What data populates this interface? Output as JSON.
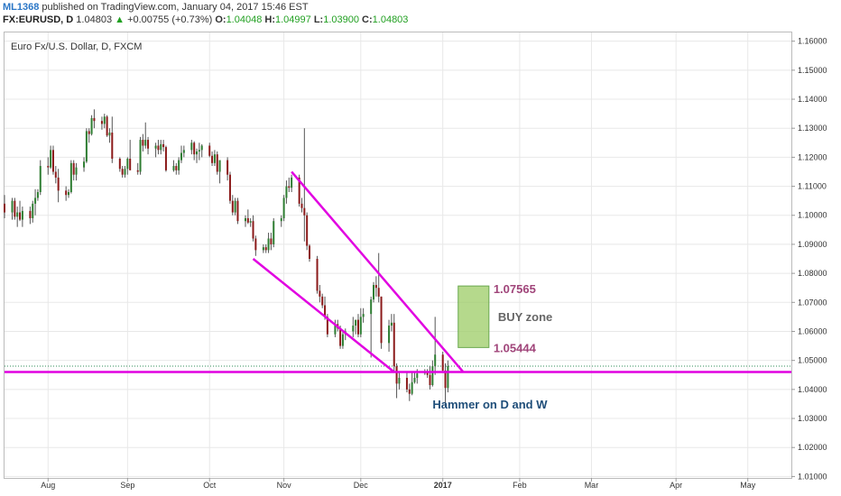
{
  "header": {
    "author": "ML1368",
    "published_text": "published on TradingView.com, January 04, 2017 15:46 EST",
    "symbol": "FX:EURUSD, D",
    "last": "1.04803",
    "arrow": "▲",
    "change": "+0.00755 (+0.73%)",
    "o_label": "O:",
    "o_value": "1.04048",
    "h_label": "H:",
    "h_value": "1.04997",
    "l_label": "L:",
    "l_value": "1.03900",
    "c_label": "C:",
    "c_value": "1.04803"
  },
  "colors": {
    "up": "#2e7d32",
    "down": "#8b1a1a",
    "trendline": "#e100e1",
    "support": "#e100e1",
    "buy_zone_fill": "#9ccc65",
    "buy_zone_stroke": "#6aa84f",
    "price_line": "#2e8b57",
    "grid": "#e8e8e8"
  },
  "chart_data": {
    "type": "candlestick",
    "title": "Euro Fx/U.S. Dollar, D, FXCM",
    "y_range": [
      1.0095,
      1.163
    ],
    "y_ticks": [
      "1.16000",
      "1.15000",
      "1.14000",
      "1.13000",
      "1.12000",
      "1.11000",
      "1.10000",
      "1.09000",
      "1.08000",
      "1.07000",
      "1.06000",
      "1.05000",
      "1.04000",
      "1.03000",
      "1.02000",
      "1.01000"
    ],
    "x_ticks": [
      {
        "label": "Aug",
        "date": "2016-08-01",
        "bold": false
      },
      {
        "label": "Sep",
        "date": "2016-09-01",
        "bold": false
      },
      {
        "label": "Oct",
        "date": "2016-10-03",
        "bold": false
      },
      {
        "label": "Nov",
        "date": "2016-11-01",
        "bold": false
      },
      {
        "label": "Dec",
        "date": "2016-12-01",
        "bold": false
      },
      {
        "label": "2017",
        "date": "2017-01-02",
        "bold": true
      },
      {
        "label": "Feb",
        "date": "2017-02-01",
        "bold": false
      },
      {
        "label": "Mar",
        "date": "2017-03-01",
        "bold": false
      },
      {
        "label": "Apr",
        "date": "2017-04-03",
        "bold": false
      },
      {
        "label": "May",
        "date": "2017-05-01",
        "bold": false
      }
    ],
    "x_range": [
      "2016-07-15",
      "2017-05-18"
    ],
    "close_line": 1.04803,
    "candles": [
      [
        "2016-07-15",
        1.104,
        1.107,
        1.099,
        1.101
      ],
      [
        "2016-07-18",
        1.101,
        1.106,
        1.0985,
        1.105
      ],
      [
        "2016-07-19",
        1.105,
        1.106,
        1.0985,
        1.0995
      ],
      [
        "2016-07-20",
        1.0995,
        1.103,
        1.096,
        1.101
      ],
      [
        "2016-07-21",
        1.101,
        1.105,
        1.098,
        1.0985
      ],
      [
        "2016-07-22",
        1.0985,
        1.103,
        1.096,
        1.1015
      ],
      [
        "2016-07-25",
        1.1015,
        1.103,
        1.097,
        1.099
      ],
      [
        "2016-07-26",
        1.099,
        1.105,
        1.0975,
        1.104
      ],
      [
        "2016-07-27",
        1.104,
        1.109,
        1.1,
        1.106
      ],
      [
        "2016-07-28",
        1.106,
        1.109,
        1.105,
        1.108
      ],
      [
        "2016-07-29",
        1.108,
        1.119,
        1.107,
        1.117
      ],
      [
        "2016-08-01",
        1.117,
        1.12,
        1.114,
        1.1165
      ],
      [
        "2016-08-02",
        1.1165,
        1.124,
        1.116,
        1.1225
      ],
      [
        "2016-08-03",
        1.1225,
        1.124,
        1.114,
        1.115
      ],
      [
        "2016-08-04",
        1.115,
        1.117,
        1.111,
        1.113
      ],
      [
        "2016-08-05",
        1.113,
        1.116,
        1.1045,
        1.1085
      ],
      [
        "2016-08-08",
        1.1085,
        1.11,
        1.105,
        1.107
      ],
      [
        "2016-08-09",
        1.107,
        1.109,
        1.106,
        1.108
      ],
      [
        "2016-08-10",
        1.108,
        1.119,
        1.1075,
        1.118
      ],
      [
        "2016-08-11",
        1.118,
        1.119,
        1.112,
        1.114
      ],
      [
        "2016-08-12",
        1.114,
        1.118,
        1.112,
        1.1165
      ],
      [
        "2016-08-15",
        1.1165,
        1.12,
        1.115,
        1.1185
      ],
      [
        "2016-08-16",
        1.1185,
        1.13,
        1.118,
        1.129
      ],
      [
        "2016-08-17",
        1.129,
        1.13,
        1.125,
        1.128
      ],
      [
        "2016-08-18",
        1.128,
        1.1345,
        1.1275,
        1.1335
      ],
      [
        "2016-08-19",
        1.1335,
        1.1365,
        1.13,
        1.1325
      ],
      [
        "2016-08-22",
        1.1325,
        1.134,
        1.1295,
        1.1315
      ],
      [
        "2016-08-23",
        1.1315,
        1.135,
        1.13,
        1.134
      ],
      [
        "2016-08-24",
        1.134,
        1.1345,
        1.127,
        1.1275
      ],
      [
        "2016-08-25",
        1.1275,
        1.13,
        1.125,
        1.1285
      ],
      [
        "2016-08-26",
        1.1285,
        1.134,
        1.118,
        1.1195
      ],
      [
        "2016-08-29",
        1.1195,
        1.12,
        1.115,
        1.116
      ],
      [
        "2016-08-30",
        1.116,
        1.117,
        1.113,
        1.114
      ],
      [
        "2016-08-31",
        1.114,
        1.117,
        1.113,
        1.116
      ],
      [
        "2016-09-01",
        1.116,
        1.12,
        1.114,
        1.1195
      ],
      [
        "2016-09-02",
        1.1195,
        1.126,
        1.116,
        1.1155
      ],
      [
        "2016-09-05",
        1.1155,
        1.118,
        1.114,
        1.115
      ],
      [
        "2016-09-06",
        1.115,
        1.127,
        1.114,
        1.126
      ],
      [
        "2016-09-07",
        1.126,
        1.128,
        1.122,
        1.124
      ],
      [
        "2016-09-08",
        1.124,
        1.132,
        1.123,
        1.126
      ],
      [
        "2016-09-09",
        1.126,
        1.127,
        1.121,
        1.123
      ],
      [
        "2016-09-12",
        1.123,
        1.125,
        1.12,
        1.124
      ],
      [
        "2016-09-13",
        1.124,
        1.126,
        1.121,
        1.1225
      ],
      [
        "2016-09-14",
        1.1225,
        1.126,
        1.121,
        1.1245
      ],
      [
        "2016-09-15",
        1.1245,
        1.126,
        1.122,
        1.1235
      ],
      [
        "2016-09-16",
        1.1235,
        1.124,
        1.115,
        1.1155
      ],
      [
        "2016-09-19",
        1.1155,
        1.119,
        1.115,
        1.117
      ],
      [
        "2016-09-20",
        1.117,
        1.118,
        1.114,
        1.1155
      ],
      [
        "2016-09-21",
        1.1155,
        1.12,
        1.114,
        1.119
      ],
      [
        "2016-09-22",
        1.119,
        1.124,
        1.118,
        1.1215
      ],
      [
        "2016-09-23",
        1.1215,
        1.124,
        1.12,
        1.1225
      ],
      [
        "2016-09-26",
        1.1225,
        1.126,
        1.121,
        1.125
      ],
      [
        "2016-09-27",
        1.125,
        1.1255,
        1.119,
        1.121
      ],
      [
        "2016-09-28",
        1.121,
        1.123,
        1.118,
        1.122
      ],
      [
        "2016-09-29",
        1.122,
        1.125,
        1.119,
        1.1225
      ],
      [
        "2016-09-30",
        1.1225,
        1.1245,
        1.12,
        1.124
      ],
      [
        "2016-10-03",
        1.124,
        1.125,
        1.12,
        1.1205
      ],
      [
        "2016-10-04",
        1.1205,
        1.122,
        1.117,
        1.118
      ],
      [
        "2016-10-05",
        1.118,
        1.1225,
        1.117,
        1.121
      ],
      [
        "2016-10-06",
        1.121,
        1.122,
        1.114,
        1.115
      ],
      [
        "2016-10-07",
        1.115,
        1.119,
        1.111,
        1.119
      ],
      [
        "2016-10-10",
        1.119,
        1.12,
        1.112,
        1.114
      ],
      [
        "2016-10-11",
        1.114,
        1.115,
        1.104,
        1.105
      ],
      [
        "2016-10-12",
        1.105,
        1.107,
        1.1,
        1.101
      ],
      [
        "2016-10-13",
        1.101,
        1.106,
        1.1,
        1.105
      ],
      [
        "2016-10-14",
        1.105,
        1.106,
        1.097,
        1.098
      ],
      [
        "2016-10-17",
        1.098,
        1.1,
        1.096,
        1.099
      ],
      [
        "2016-10-18",
        1.099,
        1.102,
        1.097,
        1.0975
      ],
      [
        "2016-10-19",
        1.0975,
        1.099,
        1.096,
        1.098
      ],
      [
        "2016-10-20",
        1.098,
        1.1,
        1.091,
        1.092
      ],
      [
        "2016-10-21",
        1.092,
        1.093,
        1.086,
        1.088
      ],
      [
        "2016-10-24",
        1.088,
        1.09,
        1.087,
        1.089
      ],
      [
        "2016-10-25",
        1.089,
        1.09,
        1.087,
        1.088
      ],
      [
        "2016-10-26",
        1.088,
        1.094,
        1.087,
        1.092
      ],
      [
        "2016-10-27",
        1.092,
        1.094,
        1.088,
        1.09
      ],
      [
        "2016-10-28",
        1.09,
        1.099,
        1.089,
        1.098
      ],
      [
        "2016-10-31",
        1.098,
        1.1,
        1.096,
        1.099
      ],
      [
        "2016-11-01",
        1.099,
        1.107,
        1.098,
        1.106
      ],
      [
        "2016-11-02",
        1.106,
        1.112,
        1.104,
        1.11
      ],
      [
        "2016-11-03",
        1.11,
        1.113,
        1.108,
        1.1095
      ],
      [
        "2016-11-04",
        1.1095,
        1.114,
        1.108,
        1.113
      ],
      [
        "2016-11-07",
        1.113,
        1.114,
        1.103,
        1.104
      ],
      [
        "2016-11-08",
        1.104,
        1.106,
        1.101,
        1.1025
      ],
      [
        "2016-11-09",
        1.1025,
        1.13,
        1.091,
        1.1
      ],
      [
        "2016-11-10",
        1.1,
        1.101,
        1.088,
        1.0895
      ],
      [
        "2016-11-11",
        1.0895,
        1.09,
        1.084,
        1.085
      ],
      [
        "2016-11-14",
        1.085,
        1.086,
        1.073,
        1.074
      ],
      [
        "2016-11-15",
        1.074,
        1.076,
        1.07,
        1.072
      ],
      [
        "2016-11-16",
        1.072,
        1.073,
        1.068,
        1.069
      ],
      [
        "2016-11-17",
        1.069,
        1.072,
        1.064,
        1.065
      ],
      [
        "2016-11-18",
        1.065,
        1.066,
        1.058,
        1.059
      ],
      [
        "2016-11-21",
        1.059,
        1.064,
        1.058,
        1.0625
      ],
      [
        "2016-11-22",
        1.0625,
        1.064,
        1.06,
        1.061
      ],
      [
        "2016-11-23",
        1.061,
        1.062,
        1.054,
        1.055
      ],
      [
        "2016-11-24",
        1.055,
        1.06,
        1.054,
        1.059
      ],
      [
        "2016-11-25",
        1.059,
        1.061,
        1.057,
        1.06
      ],
      [
        "2016-11-28",
        1.06,
        1.065,
        1.058,
        1.062
      ],
      [
        "2016-11-29",
        1.062,
        1.064,
        1.059,
        1.064
      ],
      [
        "2016-11-30",
        1.064,
        1.066,
        1.058,
        1.059
      ],
      [
        "2016-12-01",
        1.059,
        1.068,
        1.058,
        1.065
      ],
      [
        "2016-12-02",
        1.065,
        1.068,
        1.063,
        1.066
      ],
      [
        "2016-12-05",
        1.066,
        1.072,
        1.051,
        1.071
      ],
      [
        "2016-12-06",
        1.071,
        1.077,
        1.07,
        1.076
      ],
      [
        "2016-12-07",
        1.076,
        1.079,
        1.072,
        1.075
      ],
      [
        "2016-12-08",
        1.075,
        1.087,
        1.07,
        1.072
      ],
      [
        "2016-12-09",
        1.072,
        1.072,
        1.054,
        1.056
      ],
      [
        "2016-12-12",
        1.056,
        1.064,
        1.053,
        1.062
      ],
      [
        "2016-12-13",
        1.062,
        1.066,
        1.06,
        1.063
      ],
      [
        "2016-12-14",
        1.063,
        1.066,
        1.046,
        1.048
      ],
      [
        "2016-12-15",
        1.048,
        1.049,
        1.037,
        1.042
      ],
      [
        "2016-12-16",
        1.042,
        1.046,
        1.04,
        1.044
      ],
      [
        "2016-12-19",
        1.044,
        1.046,
        1.039,
        1.04
      ],
      [
        "2016-12-20",
        1.04,
        1.042,
        1.036,
        1.0385
      ],
      [
        "2016-12-21",
        1.0385,
        1.046,
        1.038,
        1.0425
      ],
      [
        "2016-12-22",
        1.0425,
        1.046,
        1.042,
        1.044
      ],
      [
        "2016-12-23",
        1.044,
        1.047,
        1.042,
        1.0455
      ],
      [
        "2016-12-26",
        1.0455,
        1.047,
        1.045,
        1.046
      ],
      [
        "2016-12-27",
        1.046,
        1.047,
        1.044,
        1.045
      ],
      [
        "2016-12-28",
        1.045,
        1.048,
        1.04,
        1.0415
      ],
      [
        "2016-12-29",
        1.0415,
        1.05,
        1.041,
        1.048
      ],
      [
        "2016-12-30",
        1.048,
        1.065,
        1.045,
        1.052
      ],
      [
        "2017-01-02",
        1.052,
        1.053,
        1.046,
        1.0465
      ],
      [
        "2017-01-03",
        1.0465,
        1.049,
        1.034,
        1.0405
      ],
      [
        "2017-01-04",
        1.04048,
        1.04997,
        1.039,
        1.04803
      ]
    ],
    "annotations": {
      "buy_zone": {
        "top": 1.07565,
        "bottom": 1.05444,
        "label": "BUY zone",
        "top_label": "1.07565",
        "bottom_label": "1.05444"
      },
      "hammer_label": "Hammer on D and W",
      "support_level": 1.046,
      "channel_upper": {
        "from": [
          "2016-11-04",
          1.115
        ],
        "to": [
          "2017-01-10",
          1.046
        ]
      },
      "channel_lower": {
        "from": [
          "2016-10-20",
          1.085
        ],
        "to": [
          "2016-12-14",
          1.046
        ]
      }
    }
  }
}
